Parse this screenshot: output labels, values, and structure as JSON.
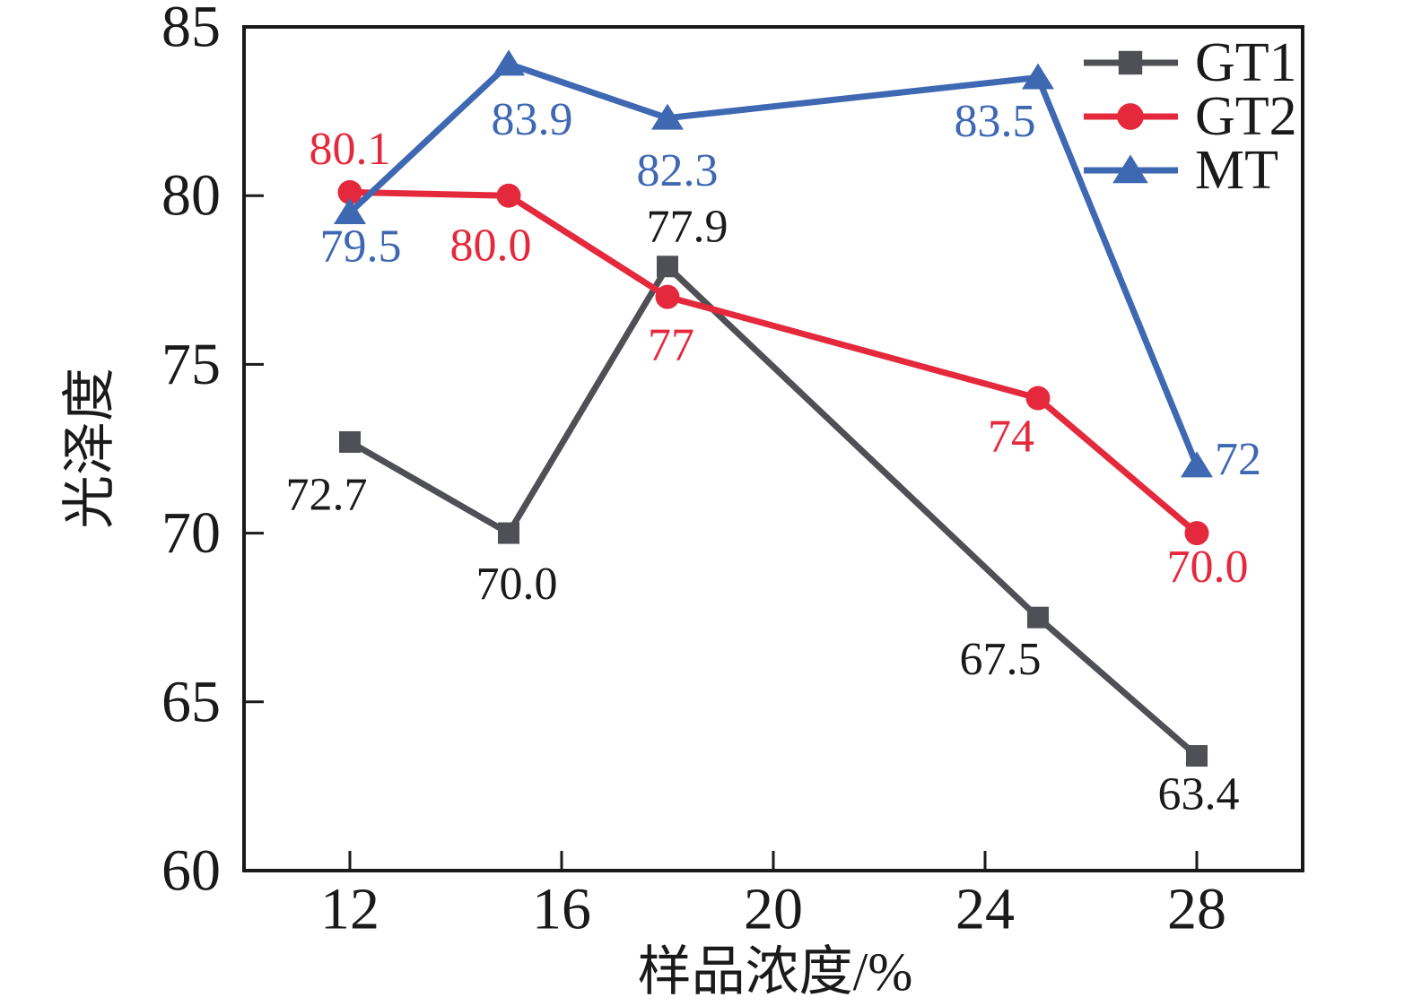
{
  "chart_data": {
    "type": "line",
    "title": "",
    "xlabel": "样品浓度/%",
    "ylabel": "光泽度",
    "xlim": [
      10,
      30
    ],
    "ylim": [
      60,
      85
    ],
    "x_ticks": [
      12,
      16,
      20,
      24,
      28
    ],
    "y_ticks": [
      60,
      65,
      70,
      75,
      80,
      85
    ],
    "grid": false,
    "legend_position": "top-right-inside",
    "x": [
      12,
      15,
      18,
      25,
      28
    ],
    "series": [
      {
        "name": "GT1",
        "marker": "square",
        "color": "#4f4f56",
        "label_color": "#1a1a1a",
        "values": [
          72.7,
          70.0,
          77.9,
          67.5,
          63.4
        ],
        "labels": [
          "72.7",
          "70.0",
          "77.9",
          "67.5",
          "63.4"
        ],
        "label_offsets": [
          [
            -26,
            59
          ],
          [
            9,
            57
          ],
          [
            22,
            -44
          ],
          [
            -42,
            47
          ],
          [
            2,
            43
          ]
        ]
      },
      {
        "name": "GT2",
        "marker": "circle",
        "color": "#e5293d",
        "label_color": "#e5293d",
        "values": [
          80.1,
          80.0,
          77,
          74,
          70.0
        ],
        "labels": [
          "80.1",
          "80.0",
          "77",
          "74",
          "70.0"
        ],
        "label_offsets": [
          [
            0,
            -48
          ],
          [
            -20,
            56
          ],
          [
            4,
            54
          ],
          [
            -30,
            43
          ],
          [
            12,
            38
          ]
        ]
      },
      {
        "name": "MT",
        "marker": "triangle",
        "color": "#3f68b2",
        "label_color": "#3f68b2",
        "values": [
          79.5,
          83.9,
          82.3,
          83.5,
          72
        ],
        "labels": [
          "79.5",
          "83.9",
          "82.3",
          "83.5",
          "72"
        ],
        "label_offsets": [
          [
            12,
            38
          ],
          [
            26,
            62
          ],
          [
            11,
            59
          ],
          [
            -48,
            49
          ],
          [
            46,
            -7
          ]
        ]
      }
    ],
    "axis_color": "#1a1a1a",
    "background_color": "#ffffff"
  }
}
